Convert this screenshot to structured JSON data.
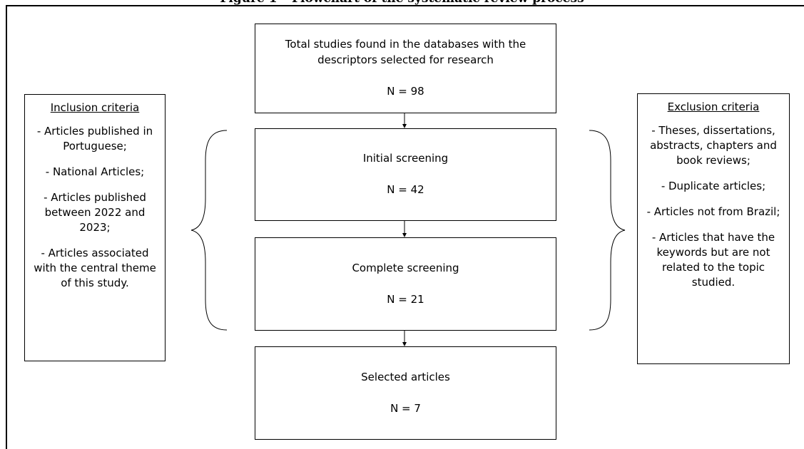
{
  "figure_title_fragment": "Figure 1 – Flowchart of the systematic review process",
  "flow": {
    "total": {
      "label": "Total studies found in the databases with the descriptors selected for research",
      "n": "N = 98"
    },
    "initial": {
      "label": "Initial screening",
      "n": "N = 42"
    },
    "complete": {
      "label": "Complete screening",
      "n": "N = 21"
    },
    "selected": {
      "label": "Selected articles",
      "n": "N = 7"
    }
  },
  "inclusion": {
    "heading": "Inclusion criteria",
    "items": [
      "- Articles published in Portuguese;",
      "- National Articles;",
      "- Articles published between 2022 and 2023;",
      "- Articles associated with the central theme of this study."
    ]
  },
  "exclusion": {
    "heading": "Exclusion criteria",
    "items": [
      "- Theses, dissertations, abstracts, chapters and book reviews;",
      "- Duplicate articles;",
      "- Articles not from Brazil;",
      "- Articles that have the keywords but are not related to the topic studied."
    ]
  }
}
